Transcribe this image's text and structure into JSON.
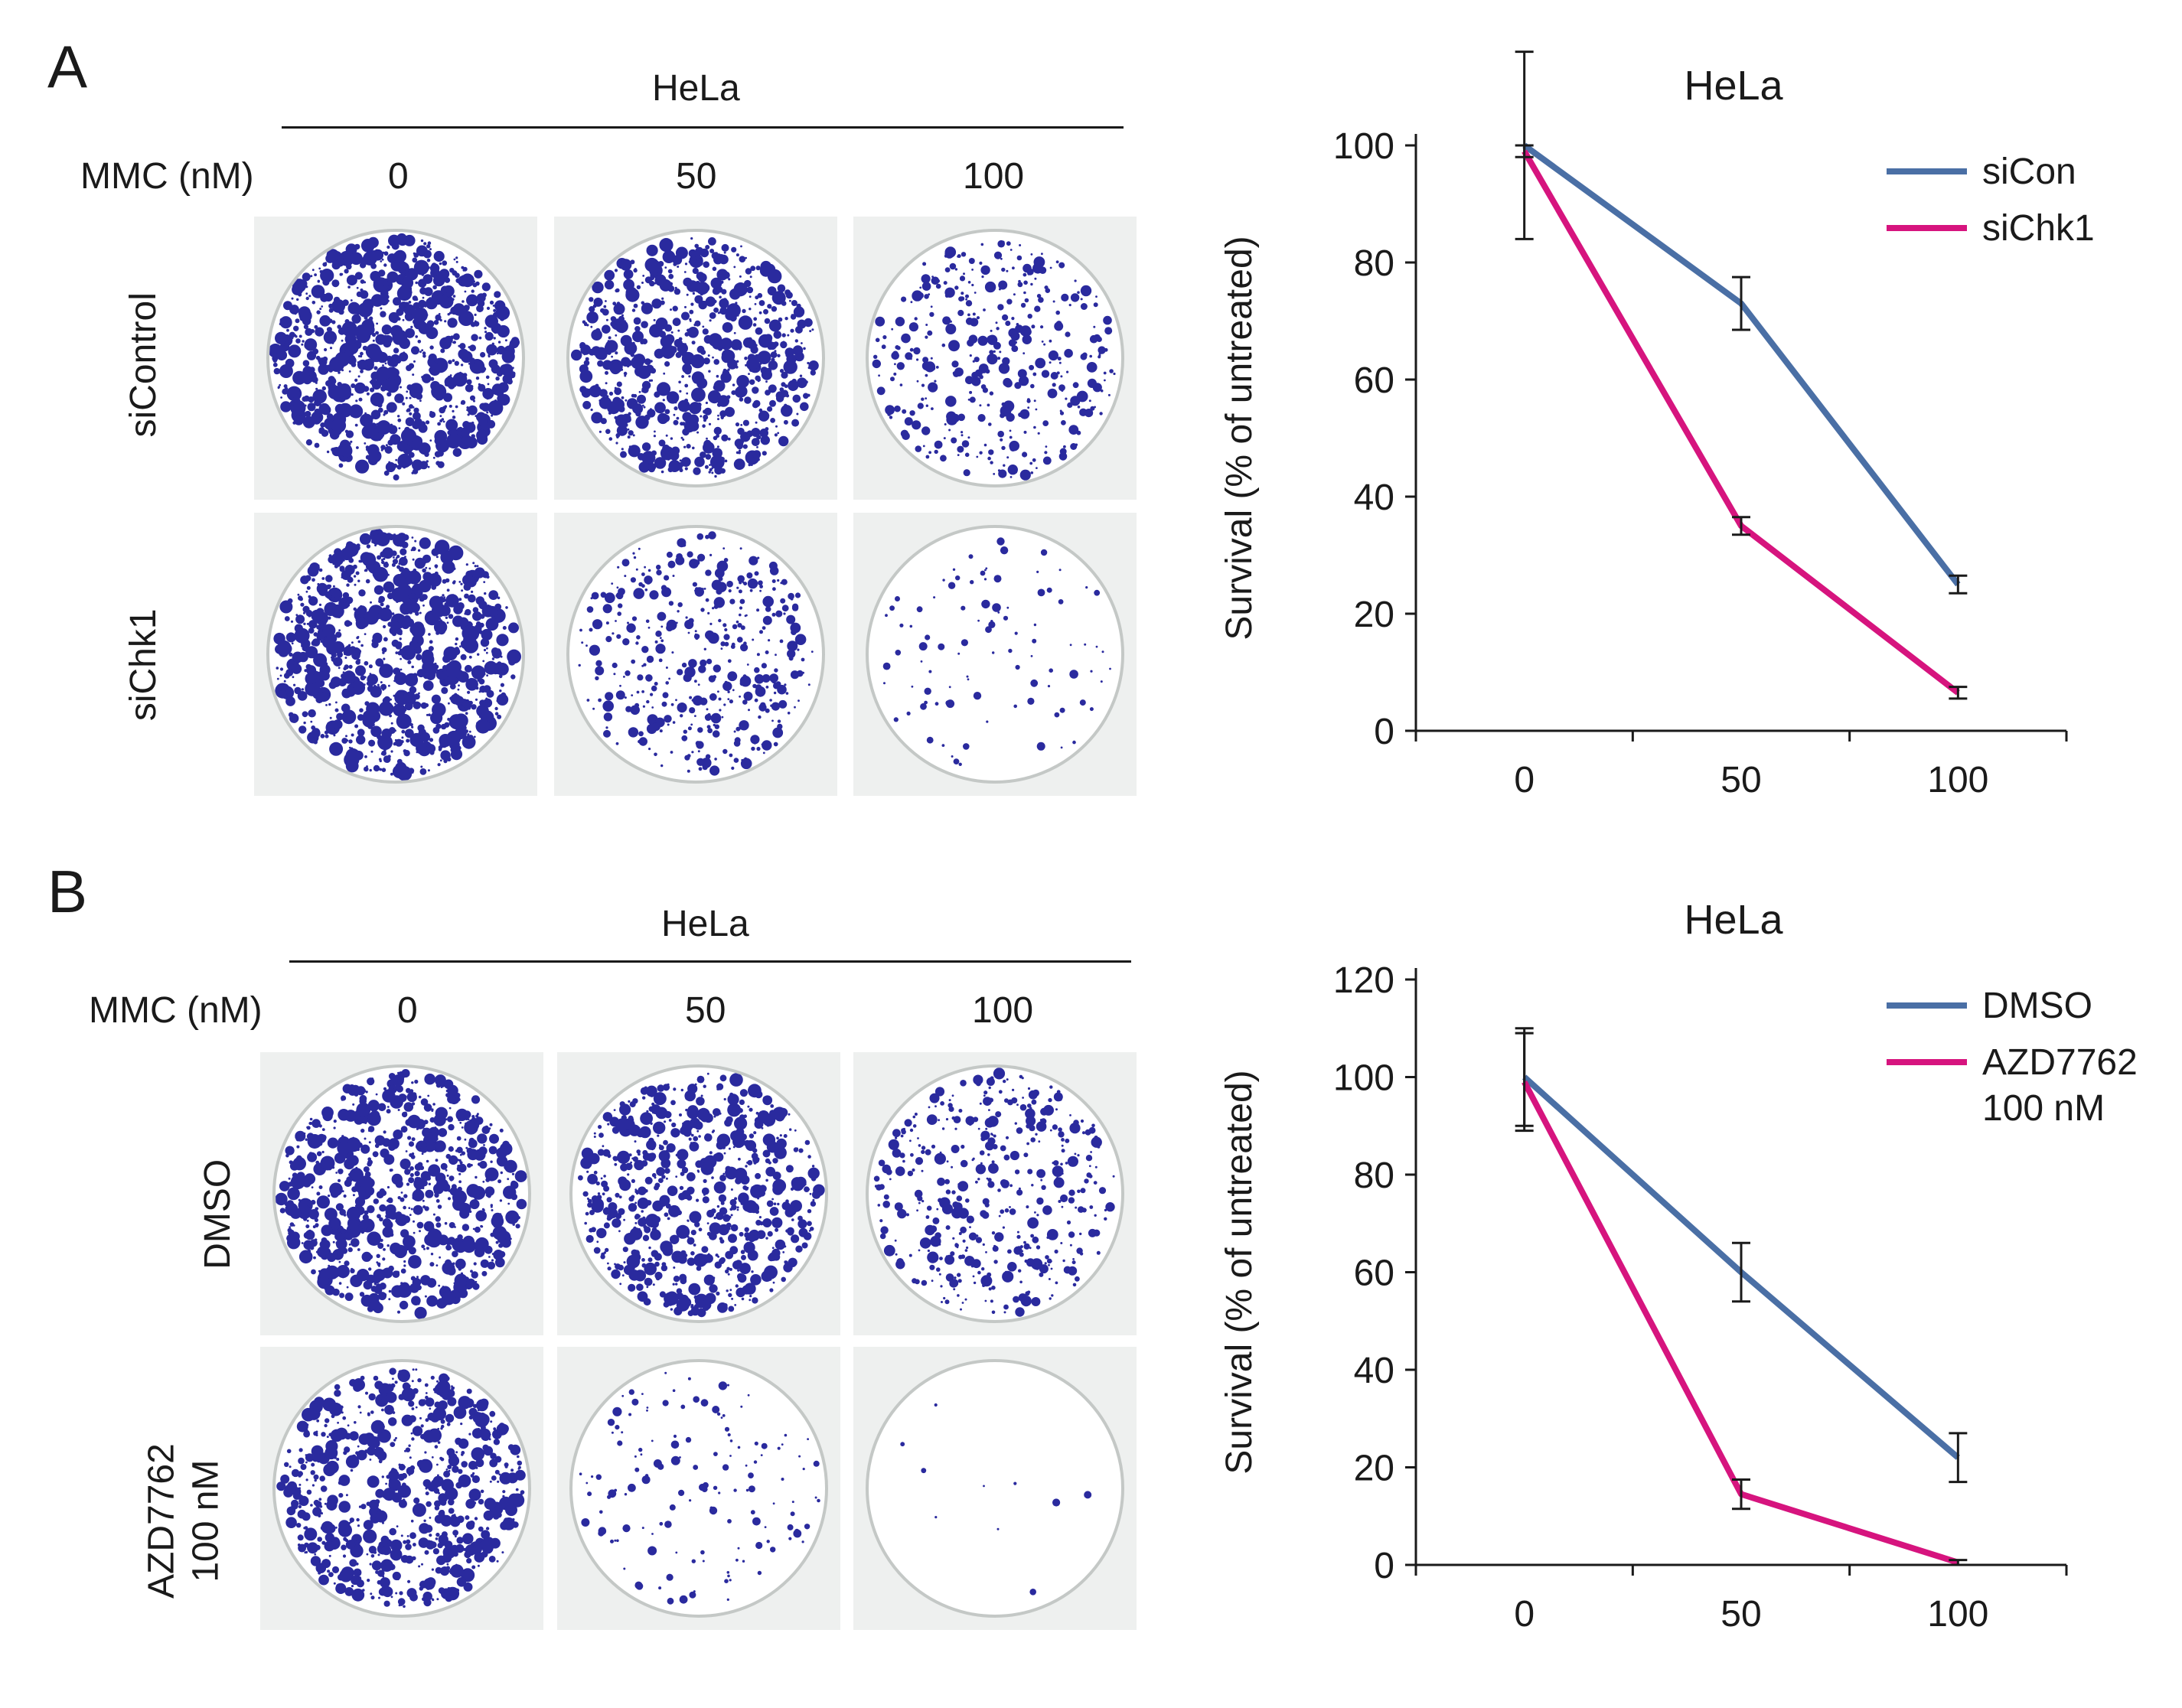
{
  "panels": [
    {
      "letter": "A",
      "header": "HeLa",
      "mmc_label": "MMC (nM)",
      "doses": [
        "0",
        "50",
        "100"
      ],
      "rows": [
        {
          "label_lines": [
            "siControl"
          ],
          "densities": [
            0.95,
            0.8,
            0.42
          ]
        },
        {
          "label_lines": [
            "siChk1"
          ],
          "densities": [
            0.95,
            0.45,
            0.1
          ]
        }
      ],
      "colony_color": "#2a2a9e"
    },
    {
      "letter": "B",
      "header": "HeLa",
      "mmc_label": "MMC (nM)",
      "doses": [
        "0",
        "50",
        "100"
      ],
      "rows": [
        {
          "label_lines": [
            "DMSO"
          ],
          "densities": [
            0.85,
            0.75,
            0.45
          ]
        },
        {
          "label_lines": [
            "AZD7762",
            "100 nM"
          ],
          "densities": [
            0.75,
            0.15,
            0.01
          ]
        }
      ],
      "colony_color": "#2a2a9e"
    }
  ],
  "chart_data": [
    {
      "type": "line",
      "title": "HeLa",
      "xlabel": "MMC (nM)",
      "ylabel": "Survival (% of untreated)",
      "categories": [
        "0",
        "50",
        "100"
      ],
      "ylim": [
        0,
        100
      ],
      "yticks": [
        0,
        20,
        40,
        60,
        80,
        100
      ],
      "legend_position": "top-right",
      "series": [
        {
          "name": "siCon",
          "color": "#4a6fa5",
          "values": [
            100,
            73,
            25
          ],
          "errors": [
            16,
            4.5,
            1.5
          ]
        },
        {
          "name": "siChk1",
          "color": "#d6147e",
          "values": [
            99,
            35,
            6.5
          ],
          "errors": [
            1,
            1.5,
            1
          ]
        }
      ]
    },
    {
      "type": "line",
      "title": "HeLa",
      "xlabel": "MMC (nM)",
      "ylabel": "Survival (% of untreated)",
      "categories": [
        "0",
        "50",
        "100"
      ],
      "ylim": [
        0,
        120
      ],
      "yticks": [
        0,
        20,
        40,
        60,
        80,
        100,
        120
      ],
      "legend_position": "top-right",
      "series": [
        {
          "name": "DMSO",
          "color": "#4a6fa5",
          "values": [
            100,
            60,
            22
          ],
          "errors": [
            10,
            6,
            5
          ]
        },
        {
          "name": "AZD7762 100 nM",
          "legend_lines": [
            "AZD7762",
            "100 nM"
          ],
          "color": "#d6147e",
          "values": [
            99,
            14.5,
            0.5
          ],
          "errors": [
            10,
            3,
            0.5
          ]
        }
      ]
    }
  ]
}
